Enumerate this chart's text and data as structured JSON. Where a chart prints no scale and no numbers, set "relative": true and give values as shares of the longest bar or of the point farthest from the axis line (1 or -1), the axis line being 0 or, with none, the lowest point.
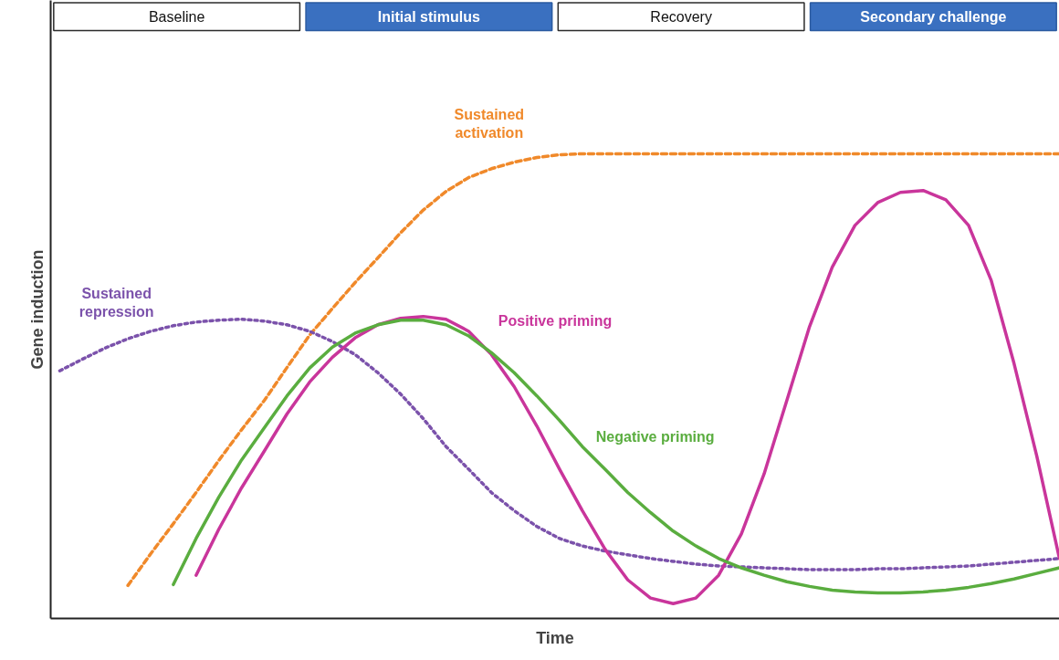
{
  "chart_data": {
    "type": "line",
    "relative": true,
    "xlabel": "Time",
    "ylabel": "Gene induction",
    "grid": false,
    "annotations": [
      "Baseline",
      "Initial stimulus",
      "Recovery",
      "Secondary challenge"
    ],
    "categories": [
      null,
      null,
      null,
      null,
      null,
      null,
      null,
      null,
      null,
      null,
      null,
      null,
      null,
      null,
      null,
      null,
      null,
      null,
      null,
      null,
      null,
      null,
      null,
      null,
      null,
      null,
      null,
      null,
      null,
      null,
      null,
      null,
      null,
      null,
      null,
      null,
      null,
      null,
      null,
      null,
      null,
      null,
      null,
      null,
      null
    ],
    "series": [
      {
        "name": "Sustained activation",
        "color": "#f0892a",
        "line_style": "dashed",
        "values": [
          null,
          null,
          null,
          0.071,
          0.139,
          0.204,
          0.271,
          0.34,
          0.406,
          0.469,
          0.54,
          0.61,
          0.667,
          0.723,
          0.776,
          0.83,
          0.879,
          0.919,
          0.949,
          0.968,
          0.982,
          0.992,
          0.998,
          1,
          1,
          1,
          1,
          1,
          1,
          1,
          1,
          1,
          1,
          1,
          1,
          1,
          1,
          1,
          1,
          1,
          1,
          1,
          1,
          1,
          1
        ]
      },
      {
        "name": "Sustained repression",
        "color": "#7b52ab",
        "line_style": "dotted",
        "values": [
          0.533,
          0.558,
          0.582,
          0.602,
          0.618,
          0.63,
          0.638,
          0.642,
          0.644,
          0.64,
          0.632,
          0.618,
          0.596,
          0.568,
          0.529,
          0.483,
          0.43,
          0.37,
          0.321,
          0.271,
          0.232,
          0.198,
          0.172,
          0.156,
          0.145,
          0.137,
          0.129,
          0.123,
          0.117,
          0.113,
          0.111,
          0.109,
          0.107,
          0.105,
          0.105,
          0.105,
          0.107,
          0.107,
          0.109,
          0.111,
          0.113,
          0.117,
          0.121,
          0.125,
          0.129
        ]
      },
      {
        "name": "Positive priming",
        "color": "#c9359b",
        "line_style": "solid",
        "values": [
          null,
          null,
          null,
          null,
          null,
          null,
          0.093,
          0.192,
          0.281,
          0.36,
          0.44,
          0.509,
          0.562,
          0.604,
          0.632,
          0.646,
          0.65,
          0.644,
          0.618,
          0.568,
          0.499,
          0.414,
          0.321,
          0.232,
          0.149,
          0.083,
          0.044,
          0.032,
          0.044,
          0.093,
          0.182,
          0.311,
          0.469,
          0.628,
          0.756,
          0.846,
          0.895,
          0.917,
          0.921,
          0.901,
          0.846,
          0.727,
          0.549,
          0.35,
          0.129
        ]
      },
      {
        "name": "Negative priming",
        "color": "#5aad3f",
        "line_style": "solid",
        "values": [
          null,
          null,
          null,
          null,
          null,
          0.073,
          0.172,
          0.261,
          0.341,
          0.41,
          0.479,
          0.539,
          0.584,
          0.614,
          0.632,
          0.642,
          0.642,
          0.632,
          0.608,
          0.572,
          0.529,
          0.479,
          0.426,
          0.37,
          0.321,
          0.271,
          0.228,
          0.188,
          0.156,
          0.129,
          0.109,
          0.093,
          0.079,
          0.069,
          0.061,
          0.057,
          0.055,
          0.055,
          0.057,
          0.061,
          0.067,
          0.075,
          0.085,
          0.097,
          0.109
        ]
      }
    ]
  }
}
